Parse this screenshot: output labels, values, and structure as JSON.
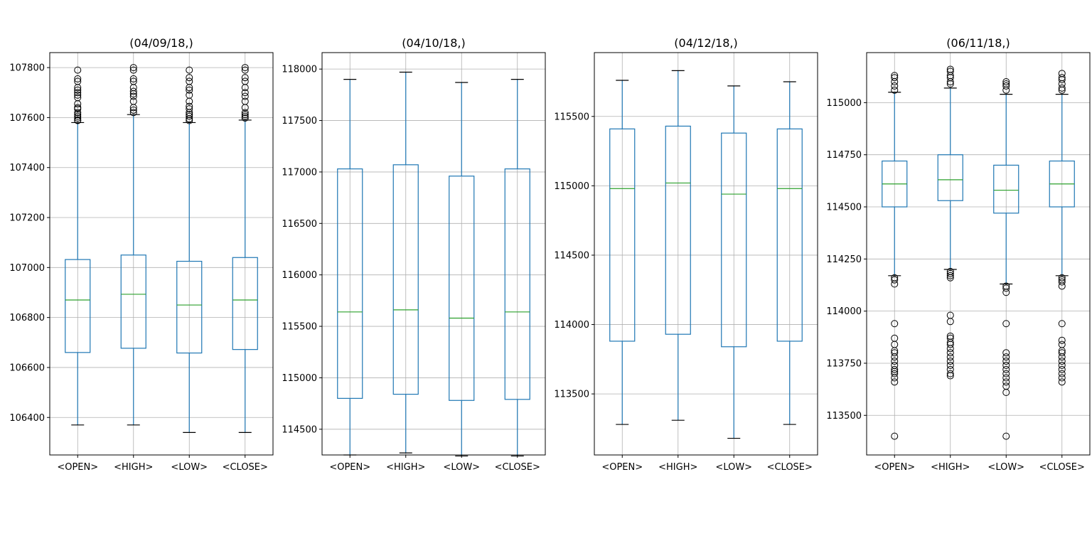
{
  "colors": {
    "box": "#1f77b4",
    "median": "#2ca02c",
    "whisker_cap": "#000000",
    "grid": "#b0b0b0",
    "axis": "#000000",
    "flier": "#000000"
  },
  "chart_data": [
    {
      "type": "box",
      "title": "(04/09/18,)",
      "categories": [
        "<OPEN>",
        "<HIGH>",
        "<LOW>",
        "<CLOSE>"
      ],
      "grid": true,
      "ylim": [
        106250,
        107860
      ],
      "yticks": [
        106400,
        106600,
        106800,
        107000,
        107200,
        107400,
        107600,
        107800
      ],
      "ytick_labels": [
        "106400",
        "106600",
        "106800",
        "107000",
        "107200",
        "107400",
        "107600",
        "107800"
      ],
      "boxes": [
        {
          "whislo": 106370,
          "q1": 106660,
          "med": 106870,
          "q3": 107032,
          "whishi": 107580,
          "fliers": [
            107588,
            107590,
            107598,
            107605,
            107612,
            107620,
            107635,
            107640,
            107655,
            107680,
            107690,
            107700,
            107710,
            107720,
            107745,
            107755,
            107790
          ]
        },
        {
          "whislo": 106370,
          "q1": 106677,
          "med": 106893,
          "q3": 107050,
          "whishi": 107612,
          "fliers": [
            107620,
            107630,
            107640,
            107665,
            107685,
            107695,
            107705,
            107720,
            107745,
            107755,
            107790,
            107800
          ]
        },
        {
          "whislo": 106340,
          "q1": 106658,
          "med": 106850,
          "q3": 107025,
          "whishi": 107580,
          "fliers": [
            107588,
            107595,
            107605,
            107612,
            107620,
            107635,
            107645,
            107665,
            107690,
            107710,
            107720,
            107745,
            107760,
            107790
          ]
        },
        {
          "whislo": 106340,
          "q1": 106672,
          "med": 106870,
          "q3": 107040,
          "whishi": 107590,
          "fliers": [
            107598,
            107605,
            107612,
            107620,
            107640,
            107665,
            107685,
            107700,
            107720,
            107745,
            107760,
            107790,
            107800
          ]
        }
      ]
    },
    {
      "type": "box",
      "title": "(04/10/18,)",
      "categories": [
        "<OPEN>",
        "<HIGH>",
        "<LOW>",
        "<CLOSE>"
      ],
      "grid": true,
      "ylim": [
        114250,
        118160
      ],
      "yticks": [
        114500,
        115000,
        115500,
        116000,
        116500,
        117000,
        117500,
        118000
      ],
      "ytick_labels": [
        "114500",
        "115000",
        "115500",
        "116000",
        "116500",
        "117000",
        "117500",
        "118000"
      ],
      "boxes": [
        {
          "whislo": 114250,
          "q1": 114800,
          "med": 115640,
          "q3": 117030,
          "whishi": 117900,
          "fliers": []
        },
        {
          "whislo": 114270,
          "q1": 114840,
          "med": 115660,
          "q3": 117070,
          "whishi": 117970,
          "fliers": []
        },
        {
          "whislo": 114240,
          "q1": 114780,
          "med": 115580,
          "q3": 116960,
          "whishi": 117870,
          "fliers": []
        },
        {
          "whislo": 114240,
          "q1": 114790,
          "med": 115640,
          "q3": 117030,
          "whishi": 117900,
          "fliers": []
        }
      ]
    },
    {
      "type": "box",
      "title": "(04/12/18,)",
      "categories": [
        "<OPEN>",
        "<HIGH>",
        "<LOW>",
        "<CLOSE>"
      ],
      "grid": true,
      "ylim": [
        113060,
        115960
      ],
      "yticks": [
        113500,
        114000,
        114500,
        115000,
        115500
      ],
      "ytick_labels": [
        "113500",
        "114000",
        "114500",
        "115000",
        "115500"
      ],
      "boxes": [
        {
          "whislo": 113280,
          "q1": 113880,
          "med": 114980,
          "q3": 115410,
          "whishi": 115760,
          "fliers": []
        },
        {
          "whislo": 113310,
          "q1": 113930,
          "med": 115020,
          "q3": 115430,
          "whishi": 115830,
          "fliers": []
        },
        {
          "whislo": 113180,
          "q1": 113840,
          "med": 114940,
          "q3": 115380,
          "whishi": 115720,
          "fliers": []
        },
        {
          "whislo": 113280,
          "q1": 113880,
          "med": 114980,
          "q3": 115410,
          "whishi": 115750,
          "fliers": []
        }
      ]
    },
    {
      "type": "box",
      "title": "(06/11/18,)",
      "categories": [
        "<OPEN>",
        "<HIGH>",
        "<LOW>",
        "<CLOSE>"
      ],
      "grid": true,
      "ylim": [
        113310,
        115240
      ],
      "yticks": [
        113500,
        113750,
        114000,
        114250,
        114500,
        114750,
        115000
      ],
      "ytick_labels": [
        "113500",
        "113750",
        "114000",
        "114250",
        "114500",
        "114750",
        "115000"
      ],
      "boxes": [
        {
          "whislo": 114170,
          "q1": 114500,
          "med": 114610,
          "q3": 114720,
          "whishi": 115050,
          "fliers": [
            113400,
            113660,
            113680,
            113700,
            113710,
            113720,
            113740,
            113760,
            113780,
            113800,
            113810,
            113840,
            113870,
            113940,
            114130,
            114150,
            114160,
            115060,
            115080,
            115100,
            115120,
            115130
          ]
        },
        {
          "whislo": 114200,
          "q1": 114530,
          "med": 114630,
          "q3": 114750,
          "whishi": 115070,
          "fliers": [
            113690,
            113700,
            113720,
            113740,
            113760,
            113780,
            113800,
            113820,
            113840,
            113850,
            113870,
            113880,
            113950,
            113980,
            114160,
            114170,
            114180,
            114190,
            115090,
            115100,
            115120,
            115130,
            115150,
            115160
          ]
        },
        {
          "whislo": 114130,
          "q1": 114470,
          "med": 114580,
          "q3": 114700,
          "whishi": 115040,
          "fliers": [
            113400,
            113610,
            113640,
            113660,
            113680,
            113700,
            113720,
            113740,
            113760,
            113780,
            113800,
            113940,
            114090,
            114110,
            114120,
            115060,
            115080,
            115090,
            115100
          ]
        },
        {
          "whislo": 114170,
          "q1": 114500,
          "med": 114610,
          "q3": 114720,
          "whishi": 115040,
          "fliers": [
            113660,
            113680,
            113700,
            113720,
            113740,
            113760,
            113780,
            113800,
            113810,
            113840,
            113860,
            113940,
            114120,
            114140,
            114150,
            114160,
            115060,
            115070,
            115090,
            115110,
            115120,
            115140
          ]
        }
      ]
    }
  ]
}
